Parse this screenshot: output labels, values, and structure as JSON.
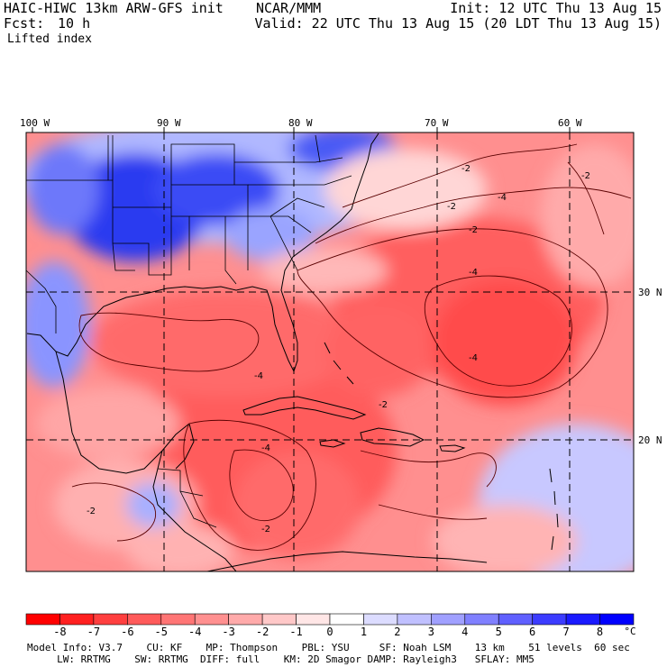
{
  "header": {
    "title": "HAIC-HIWC 13km ARW-GFS init    NCAR/MMM",
    "forecast_label": "Fcst:",
    "forecast_value": "10 h",
    "field_name": "Lifted index",
    "init": "Init: 12 UTC Thu 13 Aug 15",
    "valid": "Valid: 22 UTC Thu 13 Aug 15 (20 LDT Thu 13 Aug 15)"
  },
  "map": {
    "longitude_labels": [
      "100 W",
      "90 W",
      "80 W",
      "70 W",
      "60 W"
    ],
    "latitude_labels": [
      "30 N",
      "20 N"
    ],
    "contour_labels": [
      "-2",
      "-2",
      "-4",
      "-2",
      "-2",
      "-4",
      "-4",
      "-4",
      "-2",
      "-2",
      "-2",
      "-4"
    ]
  },
  "color_scale": {
    "labels": [
      "-8",
      "-7",
      "-6",
      "-5",
      "-4",
      "-3",
      "-2",
      "-1",
      "0",
      "1",
      "2",
      "3",
      "4",
      "5",
      "6",
      "7",
      "8"
    ],
    "unit": "°C",
    "colors": [
      "#ff0000",
      "#ff2020",
      "#ff3f3f",
      "#ff5a5a",
      "#ff7575",
      "#ff9090",
      "#ffaaaa",
      "#ffc8c8",
      "#ffe6e6",
      "#ffffff",
      "#dcdcff",
      "#c0c0ff",
      "#a0a0ff",
      "#8080ff",
      "#6060ff",
      "#3c3cff",
      "#1a1aff",
      "#0000ff"
    ]
  },
  "model_info": {
    "line1": "Model Info: V3.7    CU: KF    MP: Thompson    PBL: YSU     SF: Noah LSM    13 km    51 levels  60 sec",
    "line2": "     LW: RRTMG    SW: RRTMG  DIFF: full    KM: 2D Smagor DAMP: Rayleigh3   SFLAY: MM5"
  }
}
